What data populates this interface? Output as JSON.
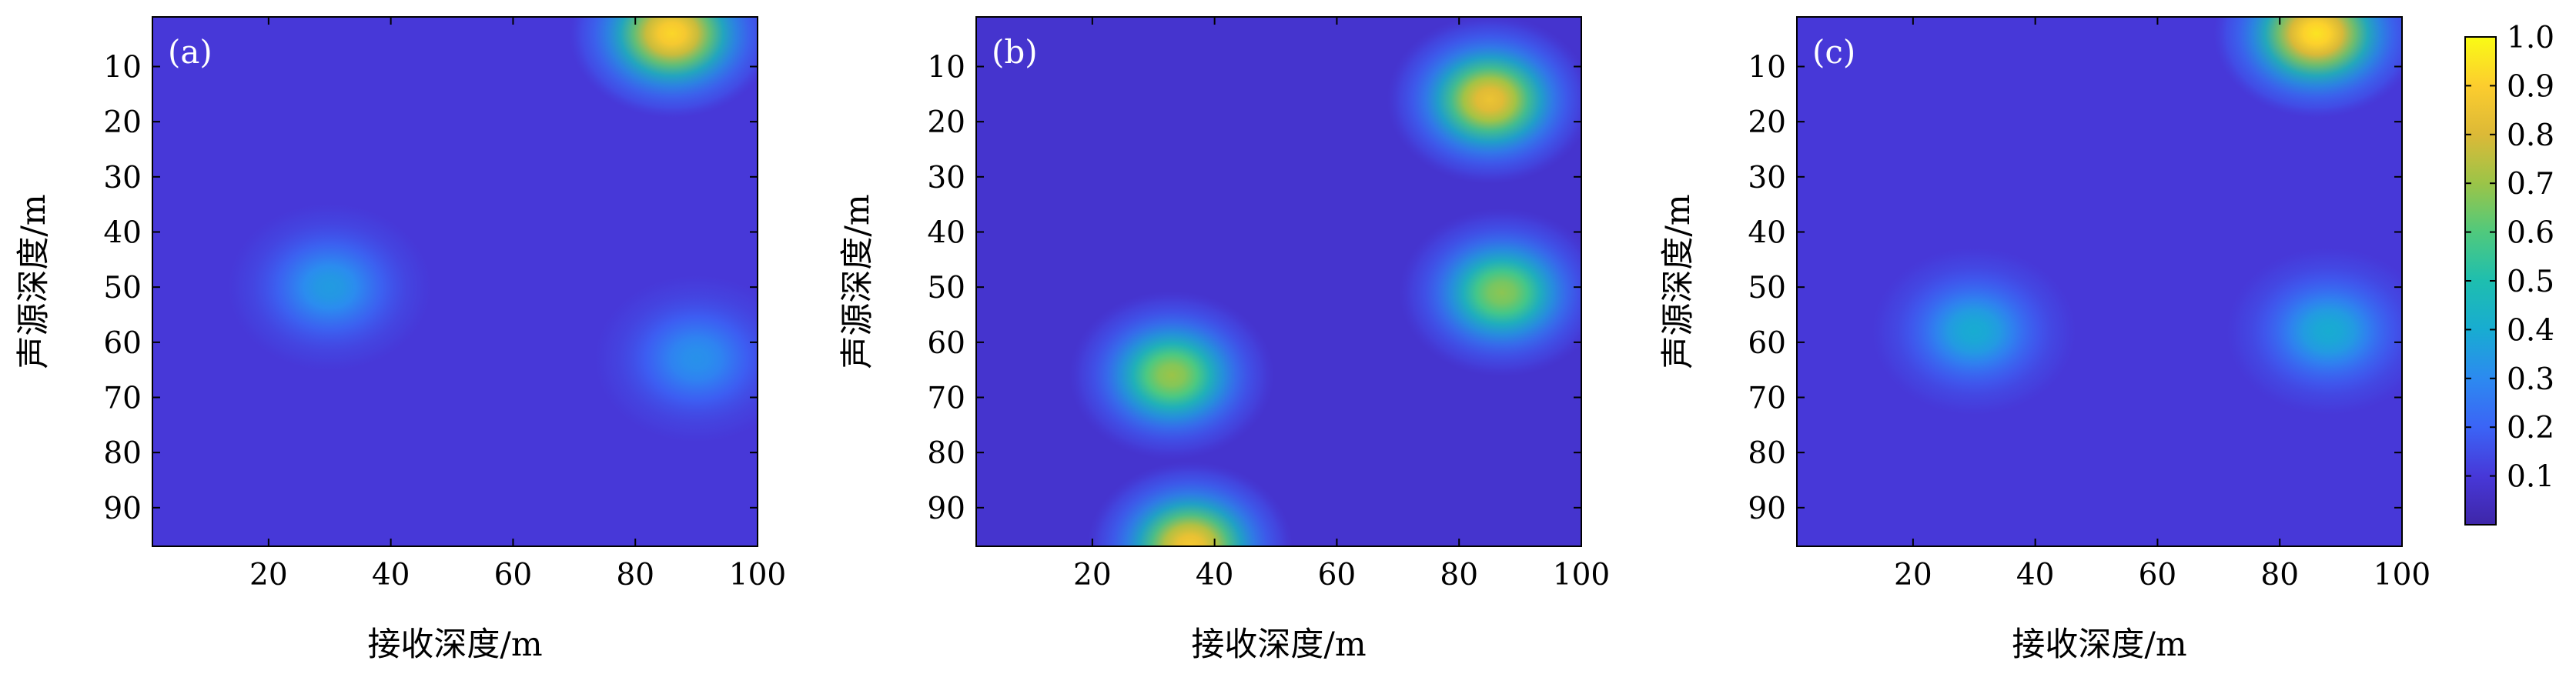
{
  "chart_data": {
    "type": "heatmap",
    "colormap": "parula",
    "colorbar": {
      "range": [
        0,
        1
      ],
      "ticks": [
        "0.1",
        "0.2",
        "0.3",
        "0.4",
        "0.5",
        "0.6",
        "0.7",
        "0.8",
        "0.9",
        "1.0"
      ],
      "tick_values": [
        0.1,
        0.2,
        0.3,
        0.4,
        0.5,
        0.6,
        0.7,
        0.8,
        0.9,
        1.0
      ]
    },
    "panels": [
      {
        "tag": "(a)",
        "xlabel": "接收深度/m",
        "ylabel": "声源深度/m",
        "xlim": [
          1,
          100
        ],
        "ylim": [
          1,
          97
        ],
        "xticks": [
          20,
          40,
          60,
          80,
          100
        ],
        "yticks": [
          10,
          20,
          30,
          40,
          50,
          60,
          70,
          80,
          90
        ],
        "background": 0.1,
        "peaks": [
          {
            "x": 86,
            "y": 4,
            "value": 0.92
          },
          {
            "x": 30,
            "y": 50,
            "value": 0.35
          },
          {
            "x": 90,
            "y": 63,
            "value": 0.32
          }
        ]
      },
      {
        "tag": "(b)",
        "xlabel": "接收深度/m",
        "ylabel": "声源深度/m",
        "xlim": [
          1,
          100
        ],
        "ylim": [
          1,
          97
        ],
        "xticks": [
          20,
          40,
          60,
          80,
          100
        ],
        "yticks": [
          10,
          20,
          30,
          40,
          50,
          60,
          70,
          80,
          90
        ],
        "background": 0.08,
        "peaks": [
          {
            "x": 85,
            "y": 16,
            "value": 0.85
          },
          {
            "x": 87,
            "y": 51,
            "value": 0.68
          },
          {
            "x": 33,
            "y": 66,
            "value": 0.7
          },
          {
            "x": 36,
            "y": 97,
            "value": 0.88
          }
        ]
      },
      {
        "tag": "(c)",
        "xlabel": "接收深度/m",
        "ylabel": "声源深度/m",
        "xlim": [
          1,
          100
        ],
        "ylim": [
          1,
          97
        ],
        "xticks": [
          20,
          40,
          60,
          80,
          100
        ],
        "yticks": [
          10,
          20,
          30,
          40,
          50,
          60,
          70,
          80,
          90
        ],
        "background": 0.1,
        "peaks": [
          {
            "x": 86,
            "y": 4,
            "value": 0.95
          },
          {
            "x": 30,
            "y": 58,
            "value": 0.4
          },
          {
            "x": 88,
            "y": 58,
            "value": 0.4
          }
        ]
      }
    ]
  }
}
